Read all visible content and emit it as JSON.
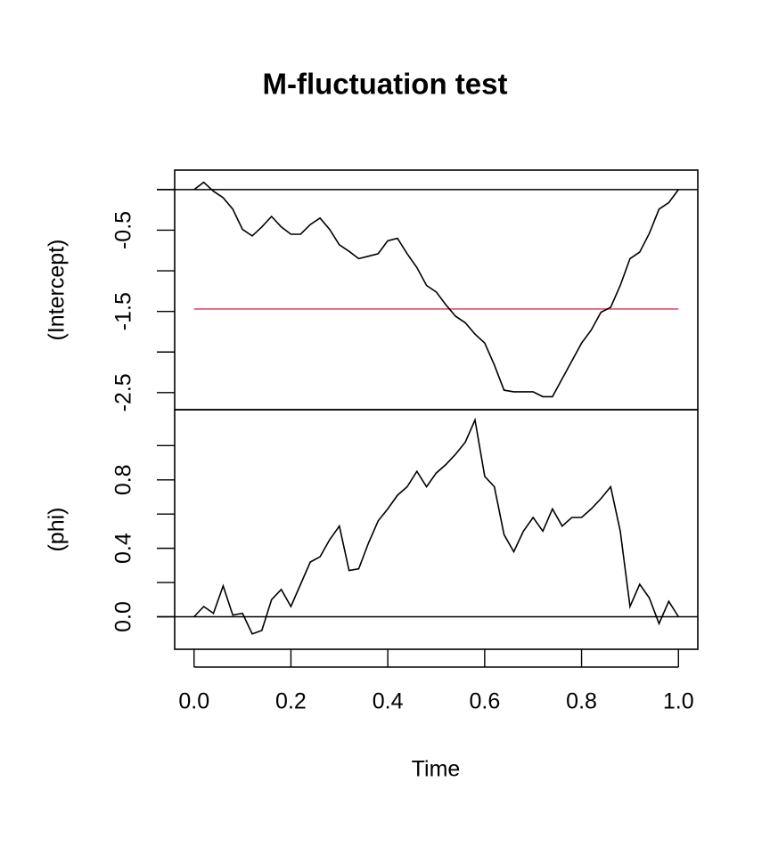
{
  "chart_data": {
    "type": "line",
    "title": "M-fluctuation test",
    "xlabel": "Time",
    "x": [
      0,
      0.02,
      0.04,
      0.06,
      0.08,
      0.1,
      0.12,
      0.14,
      0.16,
      0.18,
      0.2,
      0.22,
      0.24,
      0.26,
      0.28,
      0.3,
      0.32,
      0.34,
      0.36,
      0.38,
      0.4,
      0.42,
      0.44,
      0.46,
      0.48,
      0.5,
      0.52,
      0.54,
      0.56,
      0.58,
      0.6,
      0.62,
      0.64,
      0.66,
      0.68,
      0.7,
      0.72,
      0.74,
      0.76,
      0.78,
      0.8,
      0.82,
      0.84,
      0.86,
      0.88,
      0.9,
      0.92,
      0.94,
      0.96,
      0.98,
      1
    ],
    "xlim": [
      -0.04,
      1.04
    ],
    "xticks": [
      {
        "value": 0,
        "label": "0.0"
      },
      0.2,
      0.4,
      0.6,
      0.8,
      {
        "value": 1,
        "label": "1.0"
      }
    ],
    "panels": [
      {
        "ylabel": "(Intercept)",
        "ylim": [
          -2.71,
          0.24
        ],
        "yticks": [
          {
            "value": 0,
            "label": null
          },
          -0.5,
          {
            "value": -1,
            "label": null
          },
          -1.5,
          {
            "value": -2,
            "label": null
          },
          -2.5
        ],
        "hlines": [
          {
            "value": 0,
            "color": "#000000"
          },
          {
            "value": -1.47,
            "color": "#df536b"
          }
        ],
        "series": [
          {
            "color": "#000000",
            "values": [
              0,
              0.09,
              -0.02,
              -0.1,
              -0.24,
              -0.49,
              -0.57,
              -0.46,
              -0.33,
              -0.46,
              -0.55,
              -0.55,
              -0.43,
              -0.35,
              -0.49,
              -0.68,
              -0.76,
              -0.85,
              -0.82,
              -0.79,
              -0.63,
              -0.6,
              -0.79,
              -0.96,
              -1.18,
              -1.26,
              -1.42,
              -1.56,
              -1.64,
              -1.78,
              -1.89,
              -2.16,
              -2.47,
              -2.49,
              -2.49,
              -2.49,
              -2.55,
              -2.55,
              -2.33,
              -2.11,
              -1.89,
              -1.73,
              -1.51,
              -1.45,
              -1.18,
              -0.85,
              -0.77,
              -0.54,
              -0.24,
              -0.16,
              0
            ]
          }
        ]
      },
      {
        "ylabel": "(phi)",
        "ylim": [
          -0.19,
          1.21
        ],
        "yticks": [
          {
            "value": 0,
            "label": "0.0"
          },
          {
            "value": 0.2,
            "label": null
          },
          0.4,
          {
            "value": 0.6,
            "label": null
          },
          0.8,
          {
            "value": 1,
            "label": null
          }
        ],
        "hlines": [
          {
            "value": 0,
            "color": "#000000"
          }
        ],
        "series": [
          {
            "color": "#000000",
            "values": [
              0,
              0.06,
              0.02,
              0.18,
              0.01,
              0.02,
              -0.1,
              -0.08,
              0.1,
              0.16,
              0.06,
              0.19,
              0.32,
              0.35,
              0.45,
              0.53,
              0.27,
              0.28,
              0.43,
              0.56,
              0.63,
              0.71,
              0.76,
              0.85,
              0.76,
              0.84,
              0.89,
              0.95,
              1.02,
              1.15,
              0.82,
              0.76,
              0.48,
              0.38,
              0.5,
              0.58,
              0.5,
              0.63,
              0.53,
              0.58,
              0.58,
              0.63,
              0.69,
              0.76,
              0.5,
              0.06,
              0.19,
              0.11,
              -0.04,
              0.09,
              0
            ]
          }
        ]
      }
    ]
  }
}
